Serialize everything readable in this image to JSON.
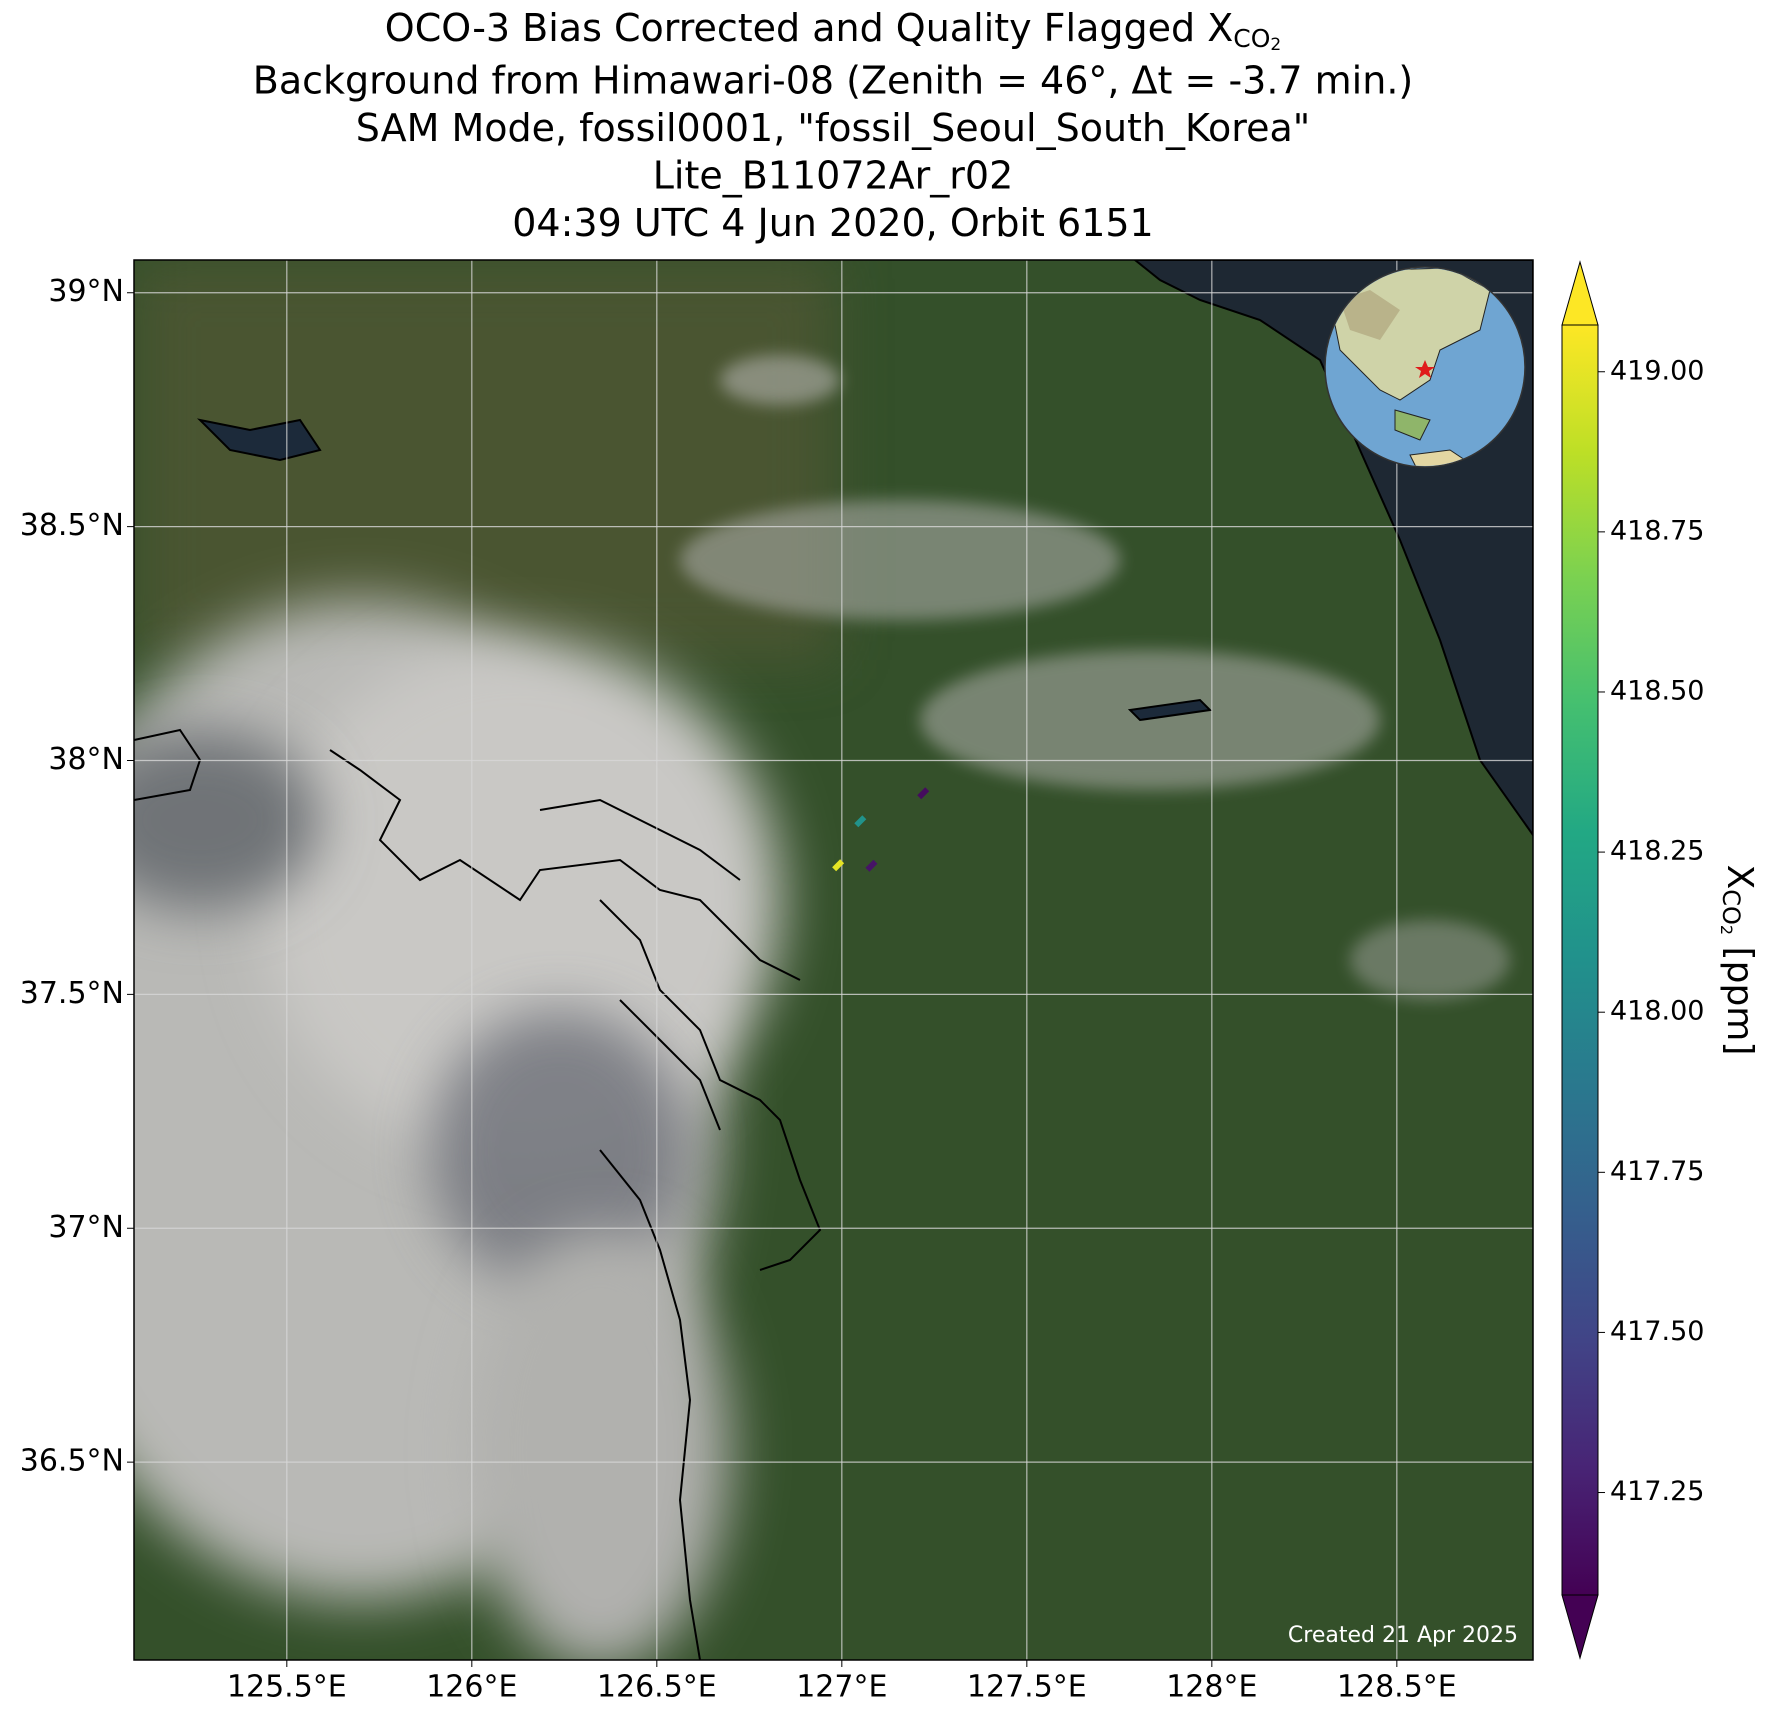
{
  "chart_data": {
    "type": "scatter",
    "title": {
      "main": "OCO-3 Bias Corrected and Quality Flagged X",
      "sub": "CO",
      "subsub": "2"
    },
    "subtitle_lines": [
      "Background from Himawari-08 (Zenith = 46°, Δt = -3.7 min.)",
      "SAM Mode, fossil0001, \"fossil_Seoul_South_Korea\"",
      "Lite_B11072Ar_r02",
      "04:39 UTC 4 Jun 2020, Orbit 6151"
    ],
    "x": [
      126.99,
      127.05,
      127.22,
      127.08
    ],
    "y": [
      37.776,
      37.87,
      37.93,
      37.775
    ],
    "values": [
      419.0,
      418.1,
      417.15,
      417.2
    ],
    "xlim": [
      125.087,
      128.868
    ],
    "ylim": [
      36.077,
      39.07
    ],
    "xticks": [
      {
        "value": 125.5,
        "label": "125.5°E"
      },
      {
        "value": 126,
        "label": "126°E"
      },
      {
        "value": 126.5,
        "label": "126.5°E"
      },
      {
        "value": 127,
        "label": "127°E"
      },
      {
        "value": 127.5,
        "label": "127.5°E"
      },
      {
        "value": 128,
        "label": "128°E"
      },
      {
        "value": 128.5,
        "label": "128.5°E"
      }
    ],
    "yticks": [
      {
        "value": 39,
        "label": "39°N"
      },
      {
        "value": 38.5,
        "label": "38.5°N"
      },
      {
        "value": 38,
        "label": "38°N"
      },
      {
        "value": 37.5,
        "label": "37.5°N"
      },
      {
        "value": 37,
        "label": "37°N"
      },
      {
        "value": 36.5,
        "label": "36.5°N"
      }
    ],
    "grid": true,
    "colormap": "viridis",
    "colorbar": {
      "label": {
        "main": "X",
        "sub": "CO",
        "subsub": "2",
        "unit": " [ppm]"
      },
      "lim": [
        417.09,
        419.073
      ],
      "ticks": [
        {
          "value": 417.25,
          "label": "417.25"
        },
        {
          "value": 417.5,
          "label": "417.50"
        },
        {
          "value": 417.75,
          "label": "417.75"
        },
        {
          "value": 418,
          "label": "418.00"
        },
        {
          "value": 418.25,
          "label": "418.25"
        },
        {
          "value": 418.5,
          "label": "418.50"
        },
        {
          "value": 418.75,
          "label": "418.75"
        },
        {
          "value": 419,
          "label": "419.00"
        }
      ],
      "extend": "both"
    },
    "credit": "Created 21 Apr 2025"
  }
}
